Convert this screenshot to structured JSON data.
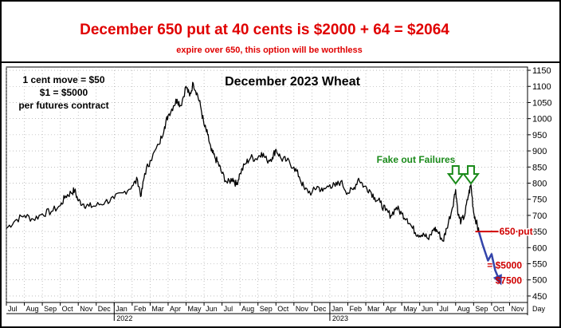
{
  "header": {
    "headline": "December 650 put at 40 cents is $2000 + 64 = $2064",
    "subline": "expire over 650, this option will be worthless"
  },
  "notes": {
    "line1": "1 cent move = $50",
    "line2": "$1 = $5000",
    "line3": "per futures contract"
  },
  "colors": {
    "headline": "#e00000",
    "price_line": "#000000",
    "fake_out": "#1a8a1a",
    "put_line": "#d00000",
    "projection": "#3344aa",
    "frame": "#000000"
  },
  "chart_data": {
    "type": "line",
    "title": "December 2023 Wheat",
    "y_axis_side": "right",
    "ylim": [
      430,
      1160
    ],
    "y_ticks": [
      450,
      500,
      550,
      600,
      650,
      700,
      750,
      800,
      850,
      900,
      950,
      1000,
      1050,
      1100,
      1150
    ],
    "x_tick_labels": [
      "Jul",
      "Aug",
      "Sep",
      "Oct",
      "Nov",
      "Dec",
      "Jan",
      "Feb",
      "Mar",
      "Apr",
      "May",
      "Jun",
      "Jul",
      "Aug",
      "Sep",
      "Oct",
      "Nov",
      "Dec",
      "Jan",
      "Feb",
      "Mar",
      "Apr",
      "May",
      "Jun",
      "Jul",
      "Aug",
      "Sep",
      "Oct",
      "Nov"
    ],
    "x_year_labels": [
      {
        "label": "2022",
        "month_index": 6
      },
      {
        "label": "2023",
        "month_index": 18
      }
    ],
    "x_axis_unit": "Day",
    "series": [
      {
        "values": [
          [
            0.0,
            660
          ],
          [
            0.5,
            685
          ],
          [
            1.0,
            700
          ],
          [
            1.5,
            688
          ],
          [
            2.0,
            705
          ],
          [
            2.5,
            712
          ],
          [
            3.0,
            730
          ],
          [
            3.3,
            760
          ],
          [
            3.6,
            770
          ],
          [
            3.8,
            778
          ],
          [
            4.0,
            745
          ],
          [
            4.3,
            735
          ],
          [
            4.6,
            728
          ],
          [
            5.0,
            730
          ],
          [
            5.5,
            742
          ],
          [
            6.0,
            752
          ],
          [
            6.5,
            770
          ],
          [
            7.0,
            792
          ],
          [
            7.3,
            810
          ],
          [
            7.5,
            760
          ],
          [
            7.7,
            830
          ],
          [
            8.0,
            870
          ],
          [
            8.5,
            920
          ],
          [
            8.8,
            975
          ],
          [
            9.0,
            1010
          ],
          [
            9.3,
            1040
          ],
          [
            9.5,
            1060
          ],
          [
            9.7,
            1040
          ],
          [
            10.0,
            1100
          ],
          [
            10.2,
            1070
          ],
          [
            10.4,
            1110
          ],
          [
            10.6,
            1080
          ],
          [
            10.8,
            1040
          ],
          [
            11.0,
            980
          ],
          [
            11.2,
            950
          ],
          [
            11.4,
            900
          ],
          [
            11.6,
            880
          ],
          [
            11.8,
            860
          ],
          [
            12.0,
            830
          ],
          [
            12.3,
            800
          ],
          [
            12.6,
            815
          ],
          [
            12.8,
            795
          ],
          [
            13.0,
            830
          ],
          [
            13.3,
            860
          ],
          [
            13.6,
            880
          ],
          [
            13.9,
            875
          ],
          [
            14.2,
            895
          ],
          [
            14.5,
            870
          ],
          [
            14.8,
            880
          ],
          [
            15.0,
            905
          ],
          [
            15.3,
            875
          ],
          [
            15.6,
            870
          ],
          [
            16.0,
            850
          ],
          [
            16.3,
            820
          ],
          [
            16.6,
            780
          ],
          [
            17.0,
            770
          ],
          [
            17.3,
            790
          ],
          [
            17.6,
            775
          ],
          [
            18.0,
            795
          ],
          [
            18.3,
            790
          ],
          [
            18.6,
            805
          ],
          [
            19.0,
            770
          ],
          [
            19.3,
            780
          ],
          [
            19.6,
            815
          ],
          [
            19.9,
            790
          ],
          [
            20.2,
            780
          ],
          [
            20.5,
            755
          ],
          [
            20.8,
            740
          ],
          [
            21.1,
            715
          ],
          [
            21.4,
            700
          ],
          [
            21.7,
            725
          ],
          [
            22.0,
            705
          ],
          [
            22.3,
            690
          ],
          [
            22.6,
            660
          ],
          [
            22.9,
            640
          ],
          [
            23.2,
            645
          ],
          [
            23.5,
            625
          ],
          [
            23.8,
            660
          ],
          [
            24.0,
            650
          ],
          [
            24.3,
            620
          ],
          [
            24.5,
            660
          ],
          [
            24.8,
            720
          ],
          [
            25.0,
            780
          ],
          [
            25.15,
            700
          ],
          [
            25.3,
            680
          ],
          [
            25.5,
            700
          ],
          [
            25.7,
            760
          ],
          [
            25.85,
            795
          ],
          [
            26.0,
            710
          ],
          [
            26.15,
            680
          ],
          [
            26.3,
            645
          ]
        ]
      }
    ],
    "annotations": {
      "fake_out_label": "Fake out Failures",
      "fake_out_points": [
        25.0,
        25.85
      ],
      "put_label": "650 put",
      "put_level": 650,
      "put_from": 26.1,
      "projection_path": [
        [
          26.3,
          648
        ],
        [
          26.5,
          610
        ],
        [
          26.8,
          560
        ],
        [
          27.0,
          580
        ],
        [
          27.2,
          530
        ],
        [
          27.5,
          490
        ]
      ],
      "value_5000_label": "= $5000",
      "value_7500_label": "$7500",
      "value_5000_level": 545,
      "value_7500_level": 498
    }
  }
}
